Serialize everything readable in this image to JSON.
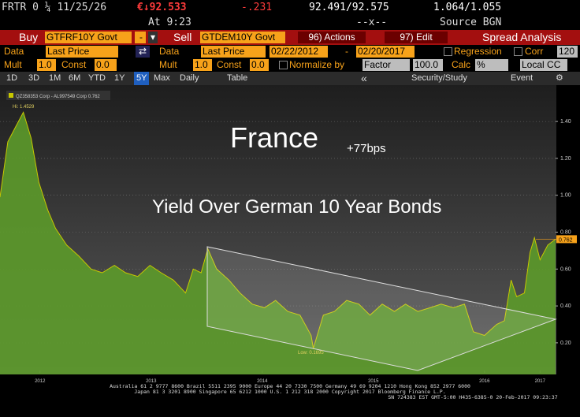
{
  "quote": {
    "ticker": "FRTR 0 ¼ 11/25/26",
    "price": "€↓92.533",
    "change": "-.231",
    "bid_ask": "92.491/92.575",
    "yield": "1.064/1.055",
    "time": "At 9:23",
    "size": "--x--",
    "source": "Source BGN"
  },
  "toolbar": {
    "buy": "Buy",
    "buy_security": "GTFRF10Y Govt",
    "buy_menu": "-",
    "sell": "Sell",
    "sell_security": "GTDEM10Y Govt",
    "actions": "96) Actions",
    "edit": "97) Edit",
    "title": "Spread Analysis"
  },
  "settings": {
    "data1_label": "Data",
    "data1": "Last Price",
    "data2_label": "Data",
    "data2": "Last Price",
    "start_date": "02/22/2012",
    "date_dash": "-",
    "end_date": "02/20/2017",
    "regression": "Regression",
    "corr": "Corr",
    "corr_value": "120",
    "mult1_label": "Mult",
    "mult1": "1.0",
    "const1_label": "Const",
    "const1": "0.0",
    "mult2_label": "Mult",
    "mult2": "1.0",
    "const2_label": "Const",
    "const2": "0.0",
    "normalize": "Normalize by",
    "factor": "Factor",
    "factor_value": "100.0",
    "calc": "Calc",
    "calc_value": "%",
    "currency": "Local CC"
  },
  "nav": {
    "periods": [
      "1D",
      "3D",
      "1M",
      "6M",
      "YTD",
      "1Y",
      "5Y",
      "Max"
    ],
    "frequency": "Daily",
    "table": "Table",
    "security_study": "Security/Study",
    "event": "Event"
  },
  "chart_data": {
    "type": "area",
    "title": "France",
    "subtitle": "Yield Over German 10 Year Bonds",
    "annotations": {
      "spread": "+77bps",
      "high": "Hi: 1.4529",
      "low": "Low: 0.1695"
    },
    "legend_text": "QZ358353 Corp - AL997549 Corp 0.762",
    "last_label": "0.762",
    "last_value": 0.762,
    "series": [
      {
        "name": "QZ358353 Corp - AL997549 Corp",
        "color": "#c8c800",
        "fill": "#5c9a2a",
        "x": [
          2012.14,
          2012.21,
          2012.28,
          2012.35,
          2012.42,
          2012.49,
          2012.57,
          2012.64,
          2012.74,
          2012.85,
          2012.96,
          2013.06,
          2013.17,
          2013.27,
          2013.38,
          2013.49,
          2013.59,
          2013.7,
          2013.81,
          2013.88,
          2013.95,
          2014.01,
          2014.09,
          2014.2,
          2014.3,
          2014.41,
          2014.52,
          2014.62,
          2014.73,
          2014.84,
          2014.94,
          2014.96,
          2015.05,
          2015.15,
          2015.26,
          2015.37,
          2015.47,
          2015.58,
          2015.69,
          2015.79,
          2015.9,
          2016.01,
          2016.11,
          2016.22,
          2016.32,
          2016.4,
          2016.5,
          2016.61,
          2016.68,
          2016.74,
          2016.79,
          2016.86,
          2016.91,
          2016.95,
          2017.0,
          2017.07,
          2017.14
        ],
        "values": [
          0.99,
          1.29,
          1.37,
          1.45,
          1.31,
          1.07,
          0.92,
          0.82,
          0.73,
          0.67,
          0.6,
          0.58,
          0.62,
          0.58,
          0.56,
          0.62,
          0.58,
          0.54,
          0.47,
          0.6,
          0.58,
          0.71,
          0.6,
          0.54,
          0.47,
          0.41,
          0.39,
          0.43,
          0.37,
          0.35,
          0.24,
          0.17,
          0.35,
          0.37,
          0.43,
          0.41,
          0.35,
          0.41,
          0.37,
          0.41,
          0.37,
          0.39,
          0.41,
          0.39,
          0.41,
          0.26,
          0.24,
          0.3,
          0.32,
          0.54,
          0.45,
          0.47,
          0.69,
          0.77,
          0.65,
          0.73,
          0.762
        ]
      }
    ],
    "xlim": [
      2012.14,
      2017.14
    ],
    "xticks": [
      {
        "value": 2012.5,
        "label": "2012"
      },
      {
        "value": 2013.5,
        "label": "2013"
      },
      {
        "value": 2014.5,
        "label": "2014"
      },
      {
        "value": 2015.5,
        "label": "2015"
      },
      {
        "value": 2016.5,
        "label": "2016"
      },
      {
        "value": 2017.0,
        "label": "2017"
      }
    ],
    "ylim": [
      0.05,
      1.58
    ],
    "yticks": [
      {
        "value": 1.4,
        "label": "1.40"
      },
      {
        "value": 1.2,
        "label": "1.20"
      },
      {
        "value": 1.0,
        "label": "1.00"
      },
      {
        "value": 0.8,
        "label": "0.80"
      },
      {
        "value": 0.6,
        "label": "0.60"
      },
      {
        "value": 0.4,
        "label": "0.40"
      },
      {
        "value": 0.2,
        "label": "0.20"
      }
    ],
    "grid": true
  },
  "footer": [
    "Australia 61 2 9777 8600 Brazil 5511 2395 9000 Europe 44 20 7330 7500 Germany 49 69 9204 1210 Hong Kong 852 2977 6000",
    "Japan 81 3 3201 8900       Singapore 65 6212 1000       U.S. 1 212 318 2000       Copyright 2017 Bloomberg Finance L.P.",
    "SN 724383 EST  GMT-5:00 H435-6385-0 20-Feb-2017 09:23:37"
  ]
}
